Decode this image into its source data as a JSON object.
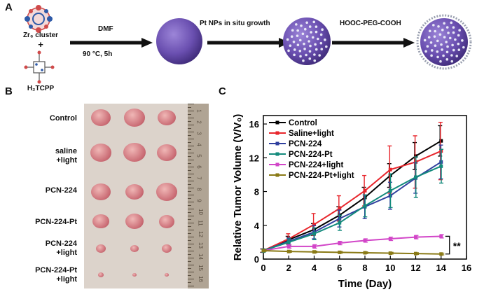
{
  "panels": {
    "a": "A",
    "b": "B",
    "c": "C"
  },
  "scheme": {
    "reactant_1": "Zr₆ cluster",
    "plus": "+",
    "reactant_2": "H₂TCPP",
    "step1_top": "DMF",
    "step1_bottom": "90 °C, 5h",
    "step2_top": "Pt NPs in situ growth",
    "step3_top": "HOOC-PEG-COOH",
    "colors": {
      "sphere": "#6a4fb0",
      "sphere_dark": "#3e2a78",
      "dots": "#e8e8f6",
      "arrow": "#111111"
    }
  },
  "photo": {
    "rows": [
      "Control",
      "saline\n+light",
      "PCN-224",
      "PCN-224-Pt",
      "PCN-224\n+light",
      "PCN-224-Pt\n+light"
    ],
    "ruler_numbers": [
      "1",
      "2",
      "3",
      "4",
      "5",
      "6",
      "7",
      "8",
      "9",
      "10",
      "11",
      "12",
      "13",
      "14",
      "15",
      "16"
    ],
    "colors": {
      "background": "#dcd3cb",
      "tumor": "#c96a73",
      "ruler": "#b0a494"
    }
  },
  "chart_data": {
    "type": "line",
    "title": "",
    "xlabel": "Time (Day)",
    "ylabel": "Relative Tumor Volume (V/V₀)",
    "xlim": [
      0,
      16
    ],
    "ylim": [
      0,
      17
    ],
    "xticks": [
      0,
      2,
      4,
      6,
      8,
      10,
      12,
      14,
      16
    ],
    "yticks": [
      0,
      4,
      8,
      12,
      16
    ],
    "legend_position": "top-left",
    "significance": "**",
    "x": [
      0,
      2,
      4,
      6,
      8,
      10,
      12,
      14
    ],
    "series": [
      {
        "name": "Control",
        "color": "#000000",
        "values": [
          1.0,
          2.3,
          3.5,
          5.2,
          7.3,
          9.9,
          12.2,
          14.0
        ],
        "errors": [
          0.2,
          0.4,
          0.7,
          1.0,
          1.2,
          1.4,
          1.6,
          1.8
        ]
      },
      {
        "name": "Saline+light",
        "color": "#e8262c",
        "values": [
          1.0,
          2.4,
          4.1,
          6.0,
          8.1,
          10.6,
          11.5,
          12.8
        ],
        "errors": [
          0.2,
          0.6,
          1.3,
          1.5,
          1.8,
          2.8,
          3.1,
          3.4
        ]
      },
      {
        "name": "PCN-224",
        "color": "#2f3f9e",
        "values": [
          1.0,
          2.1,
          3.2,
          4.8,
          6.2,
          7.5,
          9.6,
          11.5
        ],
        "errors": [
          0.2,
          0.4,
          0.8,
          1.0,
          1.4,
          1.6,
          1.8,
          2.0
        ]
      },
      {
        "name": "PCN-224-Pt",
        "color": "#138a7c",
        "values": [
          1.0,
          2.0,
          3.0,
          4.3,
          6.3,
          8.1,
          9.7,
          11.0
        ],
        "errors": [
          0.2,
          0.4,
          0.7,
          0.9,
          1.3,
          2.0,
          2.4,
          2.0
        ]
      },
      {
        "name": "PCN-224+light",
        "color": "#d246c8",
        "values": [
          1.0,
          1.5,
          1.5,
          1.9,
          2.2,
          2.4,
          2.6,
          2.7
        ],
        "errors": [
          0.1,
          0.2,
          0.2,
          0.2,
          0.2,
          0.2,
          0.2,
          0.2
        ]
      },
      {
        "name": "PCN-224-Pt+light",
        "color": "#8a7a16",
        "values": [
          1.0,
          0.9,
          0.85,
          0.8,
          0.75,
          0.7,
          0.65,
          0.6
        ],
        "errors": [
          0.1,
          0.1,
          0.1,
          0.1,
          0.1,
          0.1,
          0.1,
          0.1
        ]
      }
    ]
  }
}
